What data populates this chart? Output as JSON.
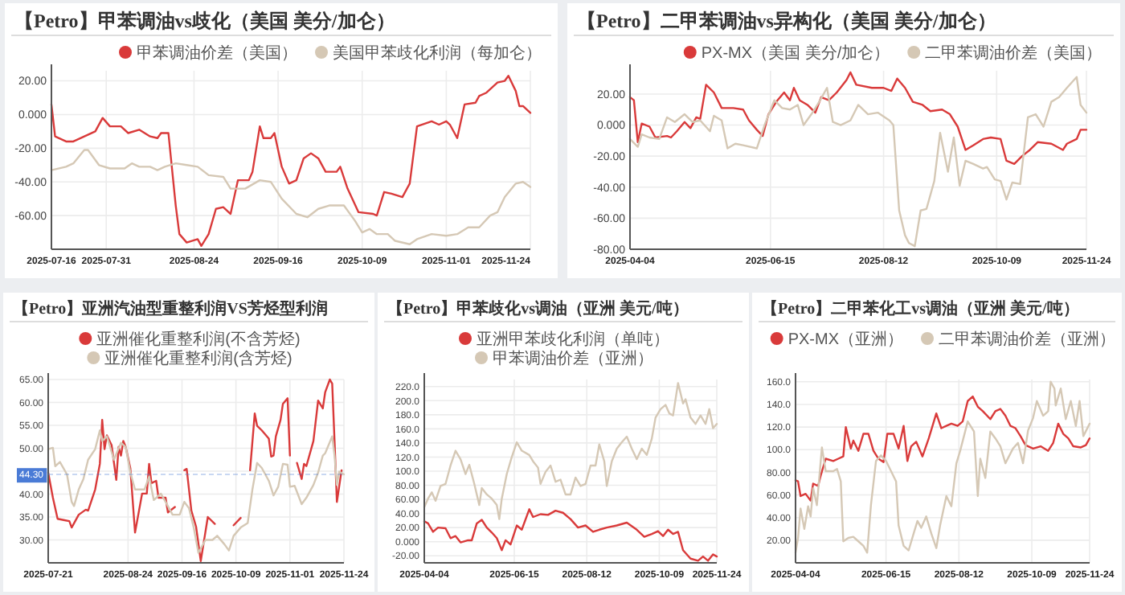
{
  "chart_data": [
    {
      "type": "line",
      "title": "【Petro】甲苯调油vs歧化（美国 美分/加仑）",
      "legend": "top",
      "grid": true,
      "xlim": [
        "2025-07-16",
        "2025-11-24"
      ],
      "xticks": [
        "2025-07-16",
        "2025-07-31",
        "2025-08-24",
        "2025-09-16",
        "2025-10-09",
        "2025-11-01",
        "2025-11-24"
      ],
      "ylim": [
        -80,
        26
      ],
      "yticks": [
        {
          "value": -60,
          "label": "-60.00"
        },
        {
          "value": -40,
          "label": "-40.00"
        },
        {
          "value": -20,
          "label": "-20.00"
        },
        {
          "value": 0,
          "label": "0.000"
        },
        {
          "value": 20,
          "label": "20.00"
        }
      ],
      "series": [
        {
          "name": "甲苯调油价差（美国）",
          "color": "#d93a3a",
          "x": [
            "2025-07-16",
            "2025-07-17",
            "2025-07-20",
            "2025-07-22",
            "2025-07-25",
            "2025-07-28",
            "2025-07-30",
            "2025-08-01",
            "2025-08-04",
            "2025-08-06",
            "2025-08-09",
            "2025-08-12",
            "2025-08-14",
            "2025-08-15",
            "2025-08-17",
            "2025-08-19",
            "2025-08-20",
            "2025-08-22",
            "2025-08-25",
            "2025-08-26",
            "2025-08-28",
            "2025-08-30",
            "2025-09-01",
            "2025-09-03",
            "2025-09-05",
            "2025-09-08",
            "2025-09-09",
            "2025-09-11",
            "2025-09-12",
            "2025-09-14",
            "2025-09-15",
            "2025-09-17",
            "2025-09-19",
            "2025-09-21",
            "2025-09-23",
            "2025-09-25",
            "2025-09-27",
            "2025-09-29",
            "2025-10-02",
            "2025-10-03",
            "2025-10-05",
            "2025-10-08",
            "2025-10-12",
            "2025-10-13",
            "2025-10-15",
            "2025-10-17",
            "2025-10-20",
            "2025-10-22",
            "2025-10-24",
            "2025-10-28",
            "2025-10-30",
            "2025-11-01",
            "2025-11-02",
            "2025-11-04",
            "2025-11-06",
            "2025-11-09",
            "2025-11-10",
            "2025-11-12",
            "2025-11-15",
            "2025-11-17",
            "2025-11-18",
            "2025-11-20",
            "2025-11-21",
            "2025-11-22",
            "2025-11-24"
          ],
          "values": [
            6,
            -13,
            -16,
            -16,
            -13,
            -10,
            -2,
            -7,
            -7,
            -11,
            -9,
            -13,
            -14,
            -11,
            -11,
            -54,
            -71,
            -76,
            -74,
            -78,
            -71,
            -56,
            -55,
            -59,
            -39,
            -39,
            -34,
            -7,
            -14,
            -14,
            -11,
            -31,
            -41,
            -39,
            -26,
            -23,
            -26,
            -34,
            -34,
            -31,
            -44,
            -58,
            -59,
            -60,
            -46,
            -47,
            -49,
            -41,
            -7,
            -4,
            -6,
            -4,
            -6,
            -14,
            6,
            7,
            11,
            13,
            19,
            20,
            23,
            14,
            5,
            5,
            1
          ]
        },
        {
          "name": "美国甲苯歧化利润（每加仑）",
          "color": "#d5c8b5",
          "x": [
            "2025-07-16",
            "2025-07-20",
            "2025-07-22",
            "2025-07-25",
            "2025-07-26",
            "2025-07-29",
            "2025-08-01",
            "2025-08-05",
            "2025-08-07",
            "2025-08-09",
            "2025-08-12",
            "2025-08-14",
            "2025-08-16",
            "2025-08-19",
            "2025-08-22",
            "2025-08-25",
            "2025-08-28",
            "2025-09-01",
            "2025-09-03",
            "2025-09-07",
            "2025-09-11",
            "2025-09-14",
            "2025-09-17",
            "2025-09-21",
            "2025-09-24",
            "2025-09-27",
            "2025-09-30",
            "2025-10-04",
            "2025-10-07",
            "2025-10-09",
            "2025-10-11",
            "2025-10-13",
            "2025-10-16",
            "2025-10-18",
            "2025-10-22",
            "2025-10-24",
            "2025-10-28",
            "2025-11-01",
            "2025-11-04",
            "2025-11-07",
            "2025-11-10",
            "2025-11-13",
            "2025-11-15",
            "2025-11-17",
            "2025-11-20",
            "2025-11-22",
            "2025-11-24"
          ],
          "values": [
            -33,
            -31,
            -29,
            -21,
            -21,
            -30,
            -32,
            -32,
            -29,
            -31,
            -31,
            -33,
            -31,
            -29,
            -30,
            -31,
            -36,
            -37,
            -44,
            -44,
            -39,
            -40,
            -50,
            -59,
            -61,
            -56,
            -54,
            -54,
            -63,
            -70,
            -68,
            -71,
            -71,
            -75,
            -77,
            -74,
            -71,
            -72,
            -71,
            -67,
            -67,
            -60,
            -58,
            -49,
            -41,
            -40,
            -43
          ]
        }
      ]
    },
    {
      "type": "line",
      "title": "【Petro】二甲苯调油vs异构化（美国 美分/加仑）",
      "legend": "top",
      "grid": true,
      "xlim": [
        "2025-04-04",
        "2025-11-24"
      ],
      "xticks": [
        "2025-04-04",
        "2025-06-15",
        "2025-08-12",
        "2025-10-09",
        "2025-11-24"
      ],
      "ylim": [
        -80,
        35
      ],
      "yticks": [
        {
          "value": -80,
          "label": "-80.00"
        },
        {
          "value": -60,
          "label": "-60.00"
        },
        {
          "value": -40,
          "label": "-40.00"
        },
        {
          "value": -20,
          "label": "-20.00"
        },
        {
          "value": 0,
          "label": "0.000"
        },
        {
          "value": 20,
          "label": "20.00"
        }
      ],
      "series": [
        {
          "name": "PX-MX（美国 美分/加仑）",
          "color": "#d93a3a",
          "x": [
            "2025-04-04",
            "2025-04-06",
            "2025-04-08",
            "2025-04-10",
            "2025-04-14",
            "2025-04-17",
            "2025-04-23",
            "2025-04-25",
            "2025-04-28",
            "2025-05-02",
            "2025-05-05",
            "2025-05-08",
            "2025-05-10",
            "2025-05-13",
            "2025-05-17",
            "2025-05-21",
            "2025-05-27",
            "2025-06-01",
            "2025-06-04",
            "2025-06-08",
            "2025-06-11",
            "2025-06-14",
            "2025-06-18",
            "2025-06-22",
            "2025-06-25",
            "2025-06-27",
            "2025-06-30",
            "2025-07-04",
            "2025-07-08",
            "2025-07-11",
            "2025-07-15",
            "2025-07-19",
            "2025-07-24",
            "2025-07-26",
            "2025-07-29",
            "2025-08-06",
            "2025-08-12",
            "2025-08-16",
            "2025-08-19",
            "2025-08-23",
            "2025-08-27",
            "2025-09-01",
            "2025-09-05",
            "2025-09-11",
            "2025-09-15",
            "2025-09-19",
            "2025-09-23",
            "2025-09-27",
            "2025-10-02",
            "2025-10-06",
            "2025-10-11",
            "2025-10-14",
            "2025-10-18",
            "2025-10-22",
            "2025-10-26",
            "2025-10-30",
            "2025-11-06",
            "2025-11-12",
            "2025-11-14",
            "2025-11-19",
            "2025-11-21",
            "2025-11-24"
          ],
          "values": [
            18,
            16,
            -11,
            1,
            -1,
            -8,
            -7,
            -8,
            -4,
            2,
            -2,
            5,
            4,
            26,
            21,
            11,
            11,
            10,
            3,
            -3,
            -7,
            7,
            15,
            21,
            16,
            24,
            16,
            13,
            8,
            18,
            16,
            21,
            29,
            34,
            26,
            24,
            24,
            22,
            30,
            24,
            15,
            13,
            9,
            10,
            7,
            -1,
            -16,
            -13,
            -9,
            -8,
            -9,
            -23,
            -25,
            -20,
            -16,
            -11,
            -12,
            -16,
            -12,
            -9,
            -3,
            -3
          ]
        },
        {
          "name": "二甲苯调油价差（美国）",
          "color": "#d5c8b5",
          "x": [
            "2025-04-04",
            "2025-04-08",
            "2025-04-10",
            "2025-04-14",
            "2025-04-19",
            "2025-04-23",
            "2025-04-27",
            "2025-05-02",
            "2025-05-06",
            "2025-05-10",
            "2025-05-15",
            "2025-05-17",
            "2025-05-21",
            "2025-05-24",
            "2025-05-28",
            "2025-06-01",
            "2025-06-08",
            "2025-06-12",
            "2025-06-17",
            "2025-06-21",
            "2025-06-25",
            "2025-06-29",
            "2025-07-02",
            "2025-07-06",
            "2025-07-10",
            "2025-07-14",
            "2025-07-17",
            "2025-07-21",
            "2025-07-26",
            "2025-07-30",
            "2025-08-04",
            "2025-08-09",
            "2025-08-15",
            "2025-08-17",
            "2025-08-20",
            "2025-08-23",
            "2025-08-25",
            "2025-08-28",
            "2025-08-31",
            "2025-09-03",
            "2025-09-07",
            "2025-09-10",
            "2025-09-14",
            "2025-09-17",
            "2025-09-20",
            "2025-09-23",
            "2025-09-27",
            "2025-10-02",
            "2025-10-04",
            "2025-10-08",
            "2025-10-11",
            "2025-10-14",
            "2025-10-17",
            "2025-10-21",
            "2025-10-25",
            "2025-10-29",
            "2025-11-02",
            "2025-11-06",
            "2025-11-10",
            "2025-11-14",
            "2025-11-19",
            "2025-11-21",
            "2025-11-24"
          ],
          "values": [
            -9,
            -14,
            -6,
            -8,
            -9,
            5,
            2,
            7,
            2,
            3,
            -4,
            6,
            3,
            -15,
            -12,
            -13,
            -15,
            0,
            16,
            11,
            10,
            13,
            0,
            7,
            15,
            24,
            2,
            0,
            3,
            13,
            7,
            8,
            3,
            0,
            -55,
            -71,
            -76,
            -78,
            -55,
            -54,
            -36,
            -5,
            -30,
            -8,
            -39,
            -23,
            -25,
            -28,
            -27,
            -35,
            -36,
            -48,
            -37,
            -38,
            5,
            7,
            -1,
            15,
            18,
            24,
            31,
            13,
            8
          ]
        }
      ]
    },
    {
      "type": "line",
      "title": "【Petro】亚洲汽油型重整利润VS芳烃型利润",
      "legend": "top",
      "grid": true,
      "xlim": [
        "2025-07-21",
        "2025-11-24"
      ],
      "xticks": [
        "2025-07-21",
        "2025-08-24",
        "2025-09-16",
        "2025-10-09",
        "2025-11-01",
        "2025-11-24"
      ],
      "ylim": [
        25,
        65
      ],
      "yticks": [
        {
          "value": 30,
          "label": "30.00"
        },
        {
          "value": 35,
          "label": "35.00"
        },
        {
          "value": 40,
          "label": "40.00"
        },
        {
          "value": 45,
          "label": null
        },
        {
          "value": 50,
          "label": "50.00"
        },
        {
          "value": 55,
          "label": "55.00"
        },
        {
          "value": 60,
          "label": "60.00"
        },
        {
          "value": 65,
          "label": "65.00"
        }
      ],
      "ref_lines": [
        {
          "axis": "y",
          "value": 44.3,
          "label": "44.30",
          "color": "#4a7bd6"
        }
      ],
      "series": [
        {
          "name": "亚洲催化重整利润(不含芳烃)",
          "color": "#d93a3a",
          "x": [
            "2025-07-21",
            "2025-07-23",
            "2025-07-25",
            "2025-07-28",
            "2025-07-30",
            "2025-07-31",
            "2025-08-03",
            "2025-08-06",
            "2025-08-07",
            "2025-08-10",
            "2025-08-12",
            "2025-08-13",
            "2025-08-14",
            "2025-08-15",
            "2025-08-17",
            "2025-08-19",
            "2025-08-20",
            "2025-08-21",
            "2025-08-22",
            "2025-08-23",
            "2025-08-25",
            "2025-08-27",
            "2025-08-30",
            "2025-09-01",
            "2025-09-02",
            "2025-09-03",
            "2025-09-05",
            "2025-09-06",
            "2025-09-09",
            "2025-09-10",
            "2025-09-13",
            "2025-09-15",
            "2025-09-17",
            "2025-09-18",
            "2025-09-20",
            "2025-09-22",
            "2025-09-24",
            "2025-09-27",
            "2025-09-30",
            "2025-10-04",
            "2025-10-08",
            "2025-10-11",
            "2025-10-13",
            "2025-10-15",
            "2025-10-17",
            "2025-10-18",
            "2025-10-20",
            "2025-10-23",
            "2025-10-24",
            "2025-10-25",
            "2025-10-26",
            "2025-10-28",
            "2025-10-29",
            "2025-10-31",
            "2025-11-01",
            "2025-11-03",
            "2025-11-04",
            "2025-11-06",
            "2025-11-07",
            "2025-11-08",
            "2025-11-11",
            "2025-11-13",
            "2025-11-15",
            "2025-11-16",
            "2025-11-18",
            "2025-11-19",
            "2025-11-20",
            "2025-11-21",
            "2025-11-23"
          ],
          "values": [
            44.7,
            39.2,
            34.6,
            34.3,
            34.1,
            32.7,
            35.5,
            36.6,
            36.4,
            41,
            46.6,
            56.2,
            49.8,
            52.8,
            50.7,
            43.1,
            50.3,
            48.4,
            51.6,
            50.3,
            45.6,
            31.6,
            40.1,
            40.1,
            46.6,
            42.4,
            42.9,
            39.2,
            39.2,
            36,
            37.2,
            null,
            45.2,
            45.5,
            36.4,
            32.9,
            25.4,
            35,
            33.5,
            null,
            33.2,
            34.8,
            null,
            45.2,
            57.6,
            54.9,
            53.9,
            52.1,
            48.2,
            48.4,
            52.6,
            56.2,
            59.7,
            60.9,
            48.4,
            null,
            46.8,
            43.3,
            46.6,
            46.1,
            51.6,
            60.4,
            58.7,
            62.2,
            65,
            64.1,
            51.6,
            38.3,
            45.2
          ]
        },
        {
          "name": "亚洲催化重整利润(含芳烃)",
          "color": "#d5c8b5",
          "x": [
            "2025-07-21",
            "2025-07-23",
            "2025-07-24",
            "2025-07-26",
            "2025-07-29",
            "2025-07-31",
            "2025-08-01",
            "2025-08-03",
            "2025-08-05",
            "2025-08-07",
            "2025-08-10",
            "2025-08-12",
            "2025-08-13",
            "2025-08-15",
            "2025-08-18",
            "2025-08-21",
            "2025-08-23",
            "2025-08-25",
            "2025-08-27",
            "2025-08-31",
            "2025-09-02",
            "2025-09-04",
            "2025-09-07",
            "2025-09-09",
            "2025-09-12",
            "2025-09-15",
            "2025-09-17",
            "2025-09-19",
            "2025-09-21",
            "2025-09-23",
            "2025-09-26",
            "2025-09-29",
            "2025-10-01",
            "2025-10-04",
            "2025-10-06",
            "2025-10-08",
            "2025-10-11",
            "2025-10-14",
            "2025-10-16",
            "2025-10-18",
            "2025-10-20",
            "2025-10-23",
            "2025-10-25",
            "2025-10-27",
            "2025-10-29",
            "2025-10-31",
            "2025-11-01",
            "2025-11-03",
            "2025-11-06",
            "2025-11-08",
            "2025-11-11",
            "2025-11-13",
            "2025-11-15",
            "2025-11-16",
            "2025-11-19",
            "2025-11-20",
            "2025-11-21",
            "2025-11-22",
            "2025-11-24"
          ],
          "values": [
            49.8,
            50.1,
            46.1,
            47,
            44.3,
            38.3,
            37.4,
            41,
            43.3,
            47.5,
            49.8,
            53.9,
            51.6,
            52.6,
            47.5,
            51.2,
            50.3,
            44.7,
            41,
            41,
            43.8,
            38.7,
            40.1,
            38.3,
            35.5,
            35.5,
            38.3,
            36.9,
            32.7,
            27.2,
            30,
            30,
            30.9,
            29.1,
            27.7,
            30.9,
            32.7,
            33.7,
            41,
            46.8,
            45.7,
            42.9,
            39.7,
            41.6,
            46.6,
            46.4,
            41.6,
            41.8,
            37.8,
            39.2,
            42,
            44.7,
            48.4,
            48.9,
            52.6,
            48.4,
            42,
            44.9,
            44.3
          ]
        }
      ]
    },
    {
      "type": "line",
      "title": "【Petro】甲苯歧化vs调油（亚洲 美元/吨）",
      "legend": "top",
      "grid": true,
      "xlim": [
        "2025-04-04",
        "2025-11-24"
      ],
      "xticks": [
        "2025-04-04",
        "2025-06-15",
        "2025-08-12",
        "2025-10-09",
        "2025-11-24"
      ],
      "ylim": [
        -30,
        230
      ],
      "yticks": [
        {
          "value": -20,
          "label": "-20.00"
        },
        {
          "value": 0,
          "label": "0.000"
        },
        {
          "value": 20,
          "label": "20.00"
        },
        {
          "value": 40,
          "label": "40.00"
        },
        {
          "value": 60,
          "label": "60.00"
        },
        {
          "value": 80,
          "label": "80.00"
        },
        {
          "value": 100,
          "label": "100.0"
        },
        {
          "value": 120,
          "label": "120.0"
        },
        {
          "value": 140,
          "label": "140.0"
        },
        {
          "value": 160,
          "label": "160.0"
        },
        {
          "value": 180,
          "label": "180.0"
        },
        {
          "value": 200,
          "label": "200.0"
        },
        {
          "value": 220,
          "label": "220.0"
        }
      ],
      "series": [
        {
          "name": "亚洲甲苯歧化利润（单吨）",
          "color": "#d93a3a",
          "x": [
            "2025-04-04",
            "2025-04-07",
            "2025-04-11",
            "2025-04-15",
            "2025-04-21",
            "2025-04-25",
            "2025-04-29",
            "2025-05-03",
            "2025-05-09",
            "2025-05-12",
            "2025-05-16",
            "2025-05-20",
            "2025-05-24",
            "2025-05-28",
            "2025-06-01",
            "2025-06-05",
            "2025-06-08",
            "2025-06-12",
            "2025-06-17",
            "2025-06-21",
            "2025-06-27",
            "2025-06-30",
            "2025-07-06",
            "2025-07-12",
            "2025-07-18",
            "2025-07-24",
            "2025-07-30",
            "2025-08-05",
            "2025-08-11",
            "2025-08-17",
            "2025-08-22",
            "2025-08-28",
            "2025-09-05",
            "2025-09-13",
            "2025-09-21",
            "2025-09-27",
            "2025-10-03",
            "2025-10-08",
            "2025-10-12",
            "2025-10-16",
            "2025-10-20",
            "2025-10-24",
            "2025-10-28",
            "2025-11-03",
            "2025-11-09",
            "2025-11-13",
            "2025-11-17",
            "2025-11-21",
            "2025-11-24"
          ],
          "values": [
            29,
            26,
            14,
            20,
            19,
            5,
            8,
            -1,
            2,
            2,
            26,
            31,
            20,
            13,
            5,
            -12,
            2,
            -4,
            23,
            17,
            46,
            35,
            39,
            38,
            44,
            41,
            32,
            20,
            23,
            14,
            17,
            20,
            23,
            27,
            17,
            7,
            11,
            15,
            8,
            17,
            11,
            14,
            -12,
            -24,
            -27,
            -21,
            -27,
            -18,
            -21
          ]
        },
        {
          "name": "甲苯调油价差（亚洲）",
          "color": "#d5c8b5",
          "x": [
            "2025-04-04",
            "2025-04-07",
            "2025-04-10",
            "2025-04-13",
            "2025-04-17",
            "2025-04-21",
            "2025-04-25",
            "2025-04-29",
            "2025-05-03",
            "2025-05-07",
            "2025-05-10",
            "2025-05-14",
            "2025-05-18",
            "2025-05-20",
            "2025-05-24",
            "2025-05-28",
            "2025-06-01",
            "2025-06-03",
            "2025-06-05",
            "2025-06-09",
            "2025-06-13",
            "2025-06-17",
            "2025-06-21",
            "2025-06-27",
            "2025-06-30",
            "2025-07-04",
            "2025-07-06",
            "2025-07-10",
            "2025-07-14",
            "2025-07-18",
            "2025-07-22",
            "2025-07-26",
            "2025-07-30",
            "2025-08-03",
            "2025-08-07",
            "2025-08-11",
            "2025-08-15",
            "2025-08-19",
            "2025-08-22",
            "2025-08-26",
            "2025-08-28",
            "2025-09-01",
            "2025-09-05",
            "2025-09-09",
            "2025-09-13",
            "2025-09-17",
            "2025-09-21",
            "2025-09-25",
            "2025-09-29",
            "2025-10-03",
            "2025-10-06",
            "2025-10-10",
            "2025-10-14",
            "2025-10-17",
            "2025-10-20",
            "2025-10-24",
            "2025-10-28",
            "2025-10-30",
            "2025-11-03",
            "2025-11-07",
            "2025-11-11",
            "2025-11-15",
            "2025-11-18",
            "2025-11-21",
            "2025-11-24"
          ],
          "values": [
            49,
            61,
            70,
            58,
            79,
            82,
            108,
            129,
            117,
            96,
            109,
            82,
            52,
            76,
            67,
            61,
            52,
            32,
            61,
            96,
            120,
            141,
            129,
            123,
            114,
            105,
            82,
            99,
            108,
            85,
            88,
            67,
            67,
            91,
            79,
            82,
            108,
            108,
            138,
            114,
            79,
            114,
            132,
            141,
            149,
            132,
            117,
            132,
            123,
            146,
            176,
            188,
            194,
            182,
            179,
            225,
            196,
            202,
            176,
            167,
            179,
            167,
            188,
            161,
            167
          ]
        }
      ]
    },
    {
      "type": "line",
      "title": "【Petro】二甲苯化工vs调油（亚洲 美元/吨）",
      "legend": "top",
      "grid": true,
      "xlim": [
        "2025-04-04",
        "2025-11-24"
      ],
      "xticks": [
        "2025-04-04",
        "2025-06-15",
        "2025-08-12",
        "2025-10-09",
        "2025-11-24"
      ],
      "ylim": [
        0,
        162
      ],
      "yticks": [
        {
          "value": 20,
          "label": "20.00"
        },
        {
          "value": 40,
          "label": "40.00"
        },
        {
          "value": 60,
          "label": "60.00"
        },
        {
          "value": 80,
          "label": "80.00"
        },
        {
          "value": 100,
          "label": "100.0"
        },
        {
          "value": 120,
          "label": "120.0"
        },
        {
          "value": 140,
          "label": "140.0"
        },
        {
          "value": 160,
          "label": "160.0"
        }
      ],
      "series": [
        {
          "name": "PX-MX（亚洲）",
          "color": "#d93a3a",
          "x": [
            "2025-04-04",
            "2025-04-06",
            "2025-04-08",
            "2025-04-12",
            "2025-04-16",
            "2025-04-18",
            "2025-04-22",
            "2025-04-24",
            "2025-04-28",
            "2025-05-04",
            "2025-05-08",
            "2025-05-12",
            "2025-05-14",
            "2025-05-18",
            "2025-05-20",
            "2025-05-24",
            "2025-05-28",
            "2025-06-01",
            "2025-06-05",
            "2025-06-09",
            "2025-06-13",
            "2025-06-16",
            "2025-06-21",
            "2025-06-25",
            "2025-06-29",
            "2025-07-02",
            "2025-07-05",
            "2025-07-09",
            "2025-07-14",
            "2025-07-19",
            "2025-07-25",
            "2025-07-29",
            "2025-08-02",
            "2025-08-06",
            "2025-08-11",
            "2025-08-15",
            "2025-08-19",
            "2025-08-23",
            "2025-08-27",
            "2025-08-31",
            "2025-09-06",
            "2025-09-10",
            "2025-09-14",
            "2025-09-18",
            "2025-09-22",
            "2025-09-26",
            "2025-09-30",
            "2025-10-04",
            "2025-10-10",
            "2025-10-16",
            "2025-10-22",
            "2025-10-26",
            "2025-10-30",
            "2025-11-03",
            "2025-11-07",
            "2025-11-11",
            "2025-11-17",
            "2025-11-21",
            "2025-11-24"
          ],
          "values": [
            73,
            72,
            59,
            61,
            55,
            70,
            68,
            77,
            92,
            90,
            92,
            94,
            120,
            101,
            108,
            99,
            114,
            114,
            99,
            92,
            89,
            114,
            114,
            101,
            121,
            90,
            103,
            107,
            94,
            110,
            132,
            119,
            121,
            123,
            121,
            125,
            143,
            147,
            138,
            134,
            127,
            134,
            136,
            130,
            121,
            119,
            112,
            104,
            101,
            103,
            99,
            106,
            123,
            114,
            110,
            103,
            102,
            104,
            110
          ]
        },
        {
          "name": "二甲苯调油价差（亚洲）",
          "color": "#d5c8b5",
          "x": [
            "2025-04-04",
            "2025-04-06",
            "2025-04-08",
            "2025-04-11",
            "2025-04-14",
            "2025-04-16",
            "2025-04-18",
            "2025-04-21",
            "2025-04-25",
            "2025-04-28",
            "2025-05-04",
            "2025-05-07",
            "2025-05-10",
            "2025-05-12",
            "2025-05-16",
            "2025-05-20",
            "2025-05-24",
            "2025-05-28",
            "2025-05-31",
            "2025-06-03",
            "2025-06-07",
            "2025-06-11",
            "2025-06-15",
            "2025-06-19",
            "2025-06-23",
            "2025-06-25",
            "2025-06-29",
            "2025-07-03",
            "2025-07-07",
            "2025-07-10",
            "2025-07-13",
            "2025-07-17",
            "2025-07-21",
            "2025-07-25",
            "2025-07-28",
            "2025-08-02",
            "2025-08-06",
            "2025-08-10",
            "2025-08-13",
            "2025-08-19",
            "2025-08-24",
            "2025-08-27",
            "2025-08-29",
            "2025-09-02",
            "2025-09-06",
            "2025-09-10",
            "2025-09-14",
            "2025-09-18",
            "2025-09-24",
            "2025-09-28",
            "2025-10-02",
            "2025-10-06",
            "2025-10-10",
            "2025-10-13",
            "2025-10-18",
            "2025-10-22",
            "2025-10-24",
            "2025-10-27",
            "2025-10-28",
            "2025-11-01",
            "2025-11-05",
            "2025-11-09",
            "2025-11-13",
            "2025-11-16",
            "2025-11-19",
            "2025-11-24"
          ],
          "values": [
            9,
            22,
            48,
            30,
            50,
            41,
            66,
            51,
            102,
            81,
            81,
            83,
            72,
            19,
            22,
            23,
            19,
            15,
            9,
            51,
            90,
            95,
            90,
            81,
            72,
            33,
            15,
            11,
            26,
            37,
            31,
            41,
            26,
            13,
            33,
            59,
            50,
            88,
            99,
            125,
            116,
            59,
            92,
            75,
            116,
            110,
            103,
            88,
            101,
            106,
            88,
            117,
            128,
            143,
            130,
            134,
            160,
            154,
            139,
            154,
            127,
            143,
            121,
            143,
            112,
            123
          ]
        }
      ]
    }
  ]
}
